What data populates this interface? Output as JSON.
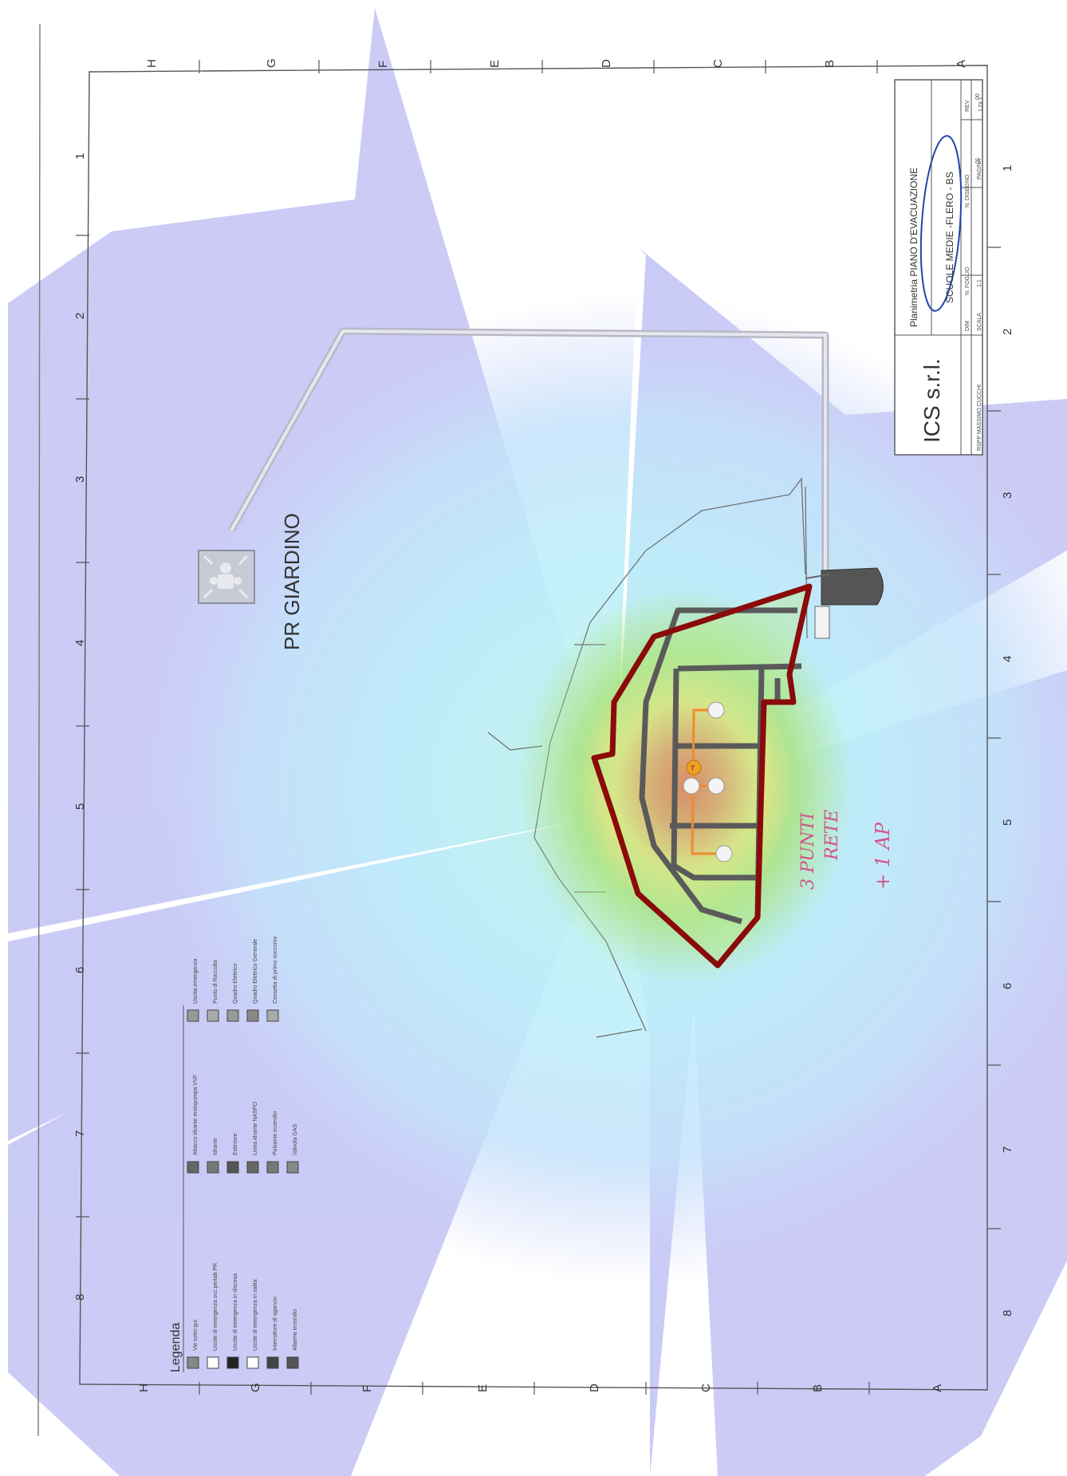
{
  "grid": {
    "letters": [
      "A",
      "B",
      "C",
      "D",
      "E",
      "F",
      "G",
      "H"
    ],
    "numbers": [
      "1",
      "2",
      "3",
      "4",
      "5",
      "6",
      "7",
      "8"
    ]
  },
  "map": {
    "assembly_label": "PR GIARDINO"
  },
  "title_block": {
    "company": "ICS s.r.l.",
    "rspp": "RSPP MASSIMO CUCCHI",
    "plan_title": "Planimetria PIANO D'EVACUAZIONE",
    "school": "SCUOLE MEDIE -FLERO - BS",
    "dim_label": "DIM",
    "n_foglio_label": "N. FOGLIO",
    "n_disegno_label": "N. DISEGNO",
    "rev_label": "REV",
    "scala_label": "SCALA",
    "pagina_label": "PAGINA",
    "scala_value": "1:1",
    "disegno_value": "01",
    "rev_value": "00",
    "pagina_value": "1 DI 1"
  },
  "annotations": {
    "note1": "3 PUNTI",
    "note2": "RETE",
    "note3": "+ 1 AP"
  },
  "legend": {
    "title": "Legenda",
    "items": [
      "Vie sotto-gui",
      "Uscite di emergenza occ.pertab PR",
      "Uscite di emergenza in discesa",
      "Uscite di emergenza in salita",
      "Interruttore di sgancio",
      "Allarme Incendio",
      "Attacco idrante motopompa VVF",
      "Idrante",
      "Estintore",
      "Linea idrante NASPO",
      "Pulsante incendio",
      "Valvola GAS",
      "Uscita emergenza",
      "Punto di Raccolta",
      "Quadro Elettrico",
      "Quadro Elettrico Generale",
      "Cassetta di primo soccorso"
    ]
  },
  "colors": {
    "coverage_far": "#c8c8f8",
    "coverage_mid": "#b8e8fb",
    "coverage_near": "#c0f5e8",
    "heat_green": "#9ee07a",
    "heat_yellow": "#f0f07a",
    "heat_orange": "#f5b060",
    "heat_red": "#f05050",
    "building_outline": "#8b0a0a",
    "walls": "#5a5a5a",
    "cable": "#f08a30",
    "ap": "#f0a020"
  }
}
